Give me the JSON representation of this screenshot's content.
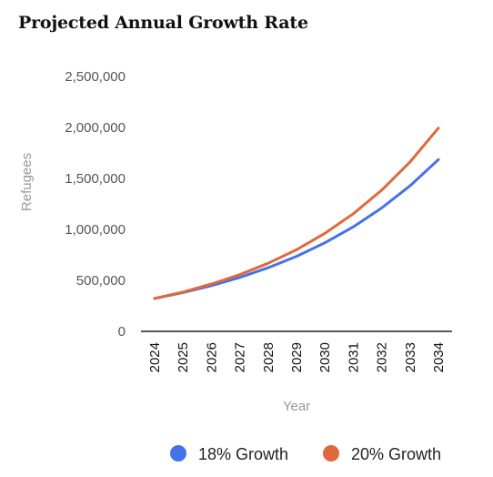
{
  "chart_data": {
    "type": "line",
    "title": "Projected Annual Growth Rate",
    "xlabel": "Year",
    "ylabel": "Refugees",
    "x": [
      "2024",
      "2025",
      "2026",
      "2027",
      "2028",
      "2029",
      "2030",
      "2031",
      "2032",
      "2033",
      "2034"
    ],
    "y_ticks": [
      "0",
      "500,000",
      "1,000,000",
      "1,500,000",
      "2,000,000",
      "2,500,000"
    ],
    "ylim": [
      0,
      2500000
    ],
    "grid": false,
    "legend_position": "bottom",
    "series": [
      {
        "name": "18% Growth",
        "color": "#4472e8",
        "values": [
          322000,
          380000,
          448000,
          529000,
          624000,
          736000,
          869000,
          1025000,
          1210000,
          1428000,
          1685000
        ]
      },
      {
        "name": "20% Growth",
        "color": "#e0693c",
        "values": [
          322000,
          386000,
          464000,
          556000,
          668000,
          801000,
          962000,
          1154000,
          1385000,
          1662000,
          1994000
        ]
      }
    ]
  }
}
